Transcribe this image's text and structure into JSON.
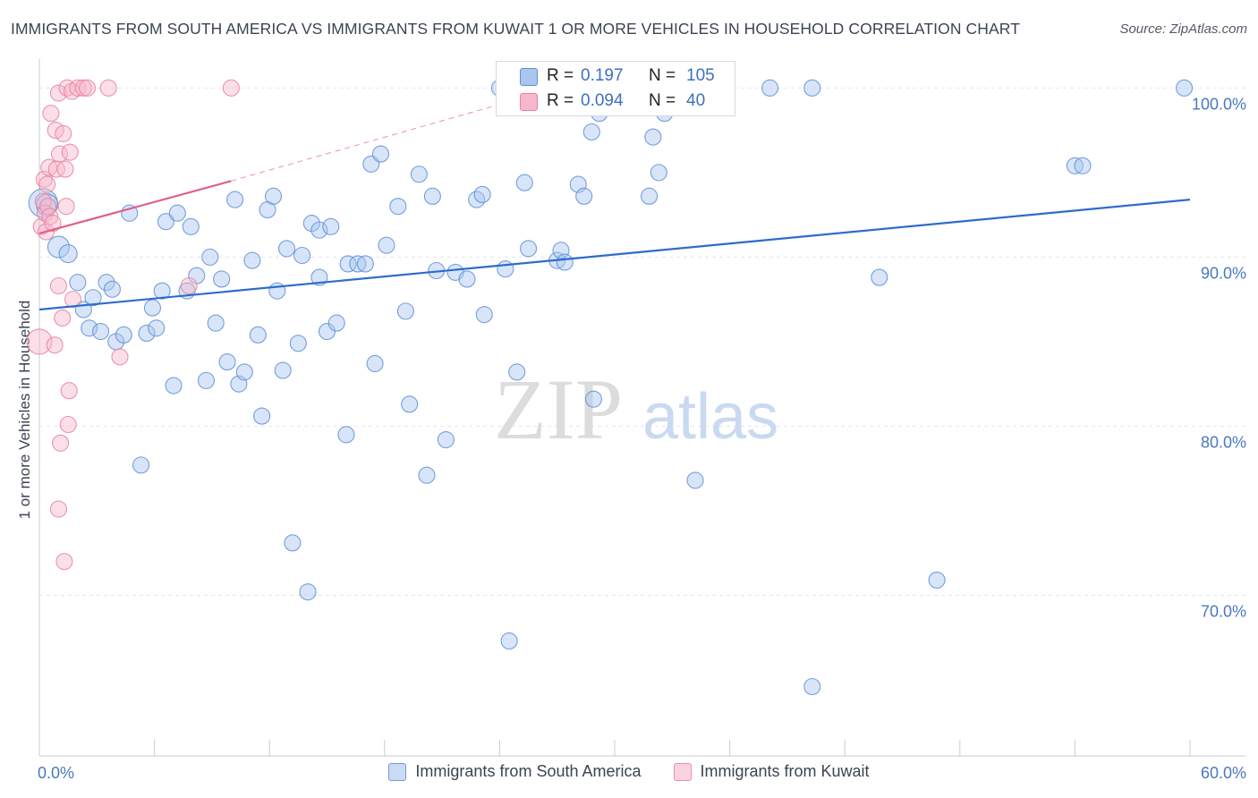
{
  "title": "IMMIGRANTS FROM SOUTH AMERICA VS IMMIGRANTS FROM KUWAIT 1 OR MORE VEHICLES IN HOUSEHOLD CORRELATION CHART",
  "source": "Source: ZipAtlas.com",
  "watermark": {
    "zip": "ZIP",
    "atlas": "atlas"
  },
  "colors": {
    "south_america_fill": "#a9c6ef",
    "south_america_stroke": "#5f8fd6",
    "south_america_line": "#2d6ccd",
    "kuwait_fill": "#f6b8cb",
    "kuwait_stroke": "#e6829f",
    "kuwait_line": "#e0608b",
    "tick_text": "#4a78c2",
    "grid": "#e3e6ea"
  },
  "stats": [
    {
      "r_label": "R =",
      "r_value": "0.197",
      "n_label": "N =",
      "n_value": "105"
    },
    {
      "r_label": "R =",
      "r_value": "0.094",
      "n_label": "N =",
      "n_value": "40"
    }
  ],
  "chart_data": {
    "type": "scatter",
    "title": "IMMIGRANTS FROM SOUTH AMERICA VS IMMIGRANTS FROM KUWAIT 1 OR MORE VEHICLES IN HOUSEHOLD CORRELATION CHART",
    "xlabel": "",
    "ylabel": "1 or more Vehicles in Household",
    "xlim": [
      0,
      60
    ],
    "ylim": [
      60.5,
      101.5
    ],
    "x_tick_labels": [
      "0.0%",
      "60.0%"
    ],
    "y_ticks": [
      {
        "value": 100,
        "label": "100.0%"
      },
      {
        "value": 90,
        "label": "90.0%"
      },
      {
        "value": 80,
        "label": "80.0%"
      },
      {
        "value": 70,
        "label": "70.0%"
      }
    ],
    "grid": "horizontal dashed",
    "legend_position": "bottom-center",
    "series": [
      {
        "name": "Immigrants from South America",
        "trend": {
          "x0": 0,
          "y0": 86.9,
          "x1": 60,
          "y1": 93.4
        },
        "points": [
          [
            0.2,
            93.2,
            16
          ],
          [
            0.4,
            93.1,
            12
          ],
          [
            1.0,
            90.6,
            12
          ],
          [
            1.5,
            90.2,
            10
          ],
          [
            2.0,
            88.5,
            9
          ],
          [
            2.3,
            86.9,
            9
          ],
          [
            2.6,
            85.8,
            9
          ],
          [
            2.8,
            87.6,
            9
          ],
          [
            3.2,
            85.6,
            9
          ],
          [
            3.5,
            88.5,
            9
          ],
          [
            3.8,
            88.1,
            9
          ],
          [
            4.0,
            85.0,
            9
          ],
          [
            4.4,
            85.4,
            9
          ],
          [
            4.7,
            92.6,
            9
          ],
          [
            5.3,
            77.7,
            9
          ],
          [
            5.6,
            85.5,
            9
          ],
          [
            5.9,
            87.0,
            9
          ],
          [
            6.1,
            85.8,
            9
          ],
          [
            6.4,
            88.0,
            9
          ],
          [
            6.6,
            92.1,
            9
          ],
          [
            7.0,
            82.4,
            9
          ],
          [
            7.2,
            92.6,
            9
          ],
          [
            7.7,
            88.0,
            9
          ],
          [
            7.9,
            91.8,
            9
          ],
          [
            8.2,
            88.9,
            9
          ],
          [
            8.7,
            82.7,
            9
          ],
          [
            8.9,
            90.0,
            9
          ],
          [
            9.2,
            86.1,
            9
          ],
          [
            9.5,
            88.7,
            9
          ],
          [
            9.8,
            83.8,
            9
          ],
          [
            10.2,
            93.4,
            9
          ],
          [
            10.4,
            82.5,
            9
          ],
          [
            10.7,
            83.2,
            9
          ],
          [
            11.1,
            89.8,
            9
          ],
          [
            11.4,
            85.4,
            9
          ],
          [
            11.6,
            80.6,
            9
          ],
          [
            11.9,
            92.8,
            9
          ],
          [
            12.2,
            93.6,
            9
          ],
          [
            12.4,
            88.0,
            9
          ],
          [
            12.7,
            83.3,
            9
          ],
          [
            12.9,
            90.5,
            9
          ],
          [
            13.2,
            73.1,
            9
          ],
          [
            13.5,
            84.9,
            9
          ],
          [
            13.7,
            90.1,
            9
          ],
          [
            14.0,
            70.2,
            9
          ],
          [
            14.2,
            92.0,
            9
          ],
          [
            14.6,
            88.8,
            9
          ],
          [
            14.6,
            91.6,
            9
          ],
          [
            15.0,
            85.6,
            9
          ],
          [
            15.2,
            91.8,
            9
          ],
          [
            15.5,
            86.1,
            9
          ],
          [
            16.0,
            79.5,
            9
          ],
          [
            16.1,
            89.6,
            9
          ],
          [
            16.6,
            89.6,
            9
          ],
          [
            17.0,
            89.6,
            9
          ],
          [
            17.3,
            95.5,
            9
          ],
          [
            17.5,
            83.7,
            9
          ],
          [
            17.8,
            96.1,
            9
          ],
          [
            18.1,
            90.7,
            9
          ],
          [
            18.7,
            93.0,
            9
          ],
          [
            19.1,
            86.8,
            9
          ],
          [
            19.3,
            81.3,
            9
          ],
          [
            19.8,
            94.9,
            9
          ],
          [
            20.2,
            77.1,
            9
          ],
          [
            20.5,
            93.6,
            9
          ],
          [
            20.7,
            89.2,
            9
          ],
          [
            21.2,
            79.2,
            9
          ],
          [
            21.7,
            89.1,
            9
          ],
          [
            22.3,
            88.7,
            9
          ],
          [
            22.8,
            93.4,
            9
          ],
          [
            23.1,
            93.7,
            9
          ],
          [
            23.2,
            86.6,
            9
          ],
          [
            24.0,
            100.0,
            9
          ],
          [
            24.3,
            89.3,
            9
          ],
          [
            24.5,
            67.3,
            9
          ],
          [
            24.9,
            83.2,
            9
          ],
          [
            25.3,
            94.4,
            9
          ],
          [
            25.5,
            90.5,
            9
          ],
          [
            27.0,
            89.8,
            9
          ],
          [
            27.2,
            90.4,
            9
          ],
          [
            27.4,
            89.7,
            9
          ],
          [
            28.1,
            94.3,
            9
          ],
          [
            28.4,
            93.6,
            9
          ],
          [
            28.9,
            81.6,
            9
          ],
          [
            28.8,
            97.4,
            9
          ],
          [
            29.2,
            98.5,
            9
          ],
          [
            29.6,
            100.0,
            9
          ],
          [
            31.8,
            93.6,
            9
          ],
          [
            32.0,
            97.1,
            9
          ],
          [
            32.3,
            95.0,
            9
          ],
          [
            32.6,
            98.5,
            9
          ],
          [
            34.2,
            76.8,
            9
          ],
          [
            34.3,
            100.0,
            9
          ],
          [
            35.1,
            100.0,
            9
          ],
          [
            35.8,
            100.0,
            9
          ],
          [
            38.1,
            100.0,
            9
          ],
          [
            40.3,
            100.0,
            9
          ],
          [
            40.3,
            64.6,
            9
          ],
          [
            43.8,
            88.8,
            9
          ],
          [
            46.8,
            70.9,
            9
          ],
          [
            54.0,
            95.4,
            9
          ],
          [
            54.4,
            95.4,
            9
          ],
          [
            59.7,
            100.0,
            9
          ]
        ]
      },
      {
        "name": "Immigrants from Kuwait",
        "trend": {
          "x0": 0,
          "y0": 91.4,
          "x1": 10,
          "y1": 94.5,
          "extends_to": {
            "x": 27,
            "y": 100
          }
        },
        "points": [
          [
            0.0,
            85.0,
            14
          ],
          [
            0.1,
            91.8,
            9
          ],
          [
            0.2,
            93.3,
            9
          ],
          [
            0.25,
            94.6,
            9
          ],
          [
            0.3,
            92.6,
            9
          ],
          [
            0.35,
            91.5,
            9
          ],
          [
            0.4,
            94.3,
            9
          ],
          [
            0.45,
            93.0,
            9
          ],
          [
            0.5,
            95.3,
            9
          ],
          [
            0.55,
            92.4,
            9
          ],
          [
            0.6,
            98.5,
            9
          ],
          [
            0.7,
            92.0,
            9
          ],
          [
            0.8,
            84.8,
            9
          ],
          [
            0.85,
            97.5,
            9
          ],
          [
            0.9,
            95.2,
            9
          ],
          [
            1.0,
            99.7,
            9
          ],
          [
            1.0,
            88.3,
            9
          ],
          [
            1.05,
            96.1,
            9
          ],
          [
            1.1,
            79.0,
            9
          ],
          [
            1.2,
            86.4,
            9
          ],
          [
            1.25,
            97.3,
            9
          ],
          [
            1.3,
            72.0,
            9
          ],
          [
            1.35,
            95.2,
            9
          ],
          [
            1.4,
            93.0,
            9
          ],
          [
            1.45,
            100.0,
            9
          ],
          [
            1.5,
            80.1,
            9
          ],
          [
            1.55,
            82.1,
            9
          ],
          [
            1.6,
            96.2,
            9
          ],
          [
            1.7,
            99.8,
            9
          ],
          [
            1.75,
            87.5,
            9
          ],
          [
            2.0,
            100.0,
            9
          ],
          [
            2.3,
            100.0,
            9
          ],
          [
            2.5,
            100.0,
            9
          ],
          [
            1.0,
            75.1,
            9
          ],
          [
            3.6,
            100.0,
            9
          ],
          [
            4.2,
            84.1,
            9
          ],
          [
            7.8,
            88.3,
            9
          ],
          [
            10.0,
            100.0,
            9
          ]
        ]
      }
    ]
  }
}
